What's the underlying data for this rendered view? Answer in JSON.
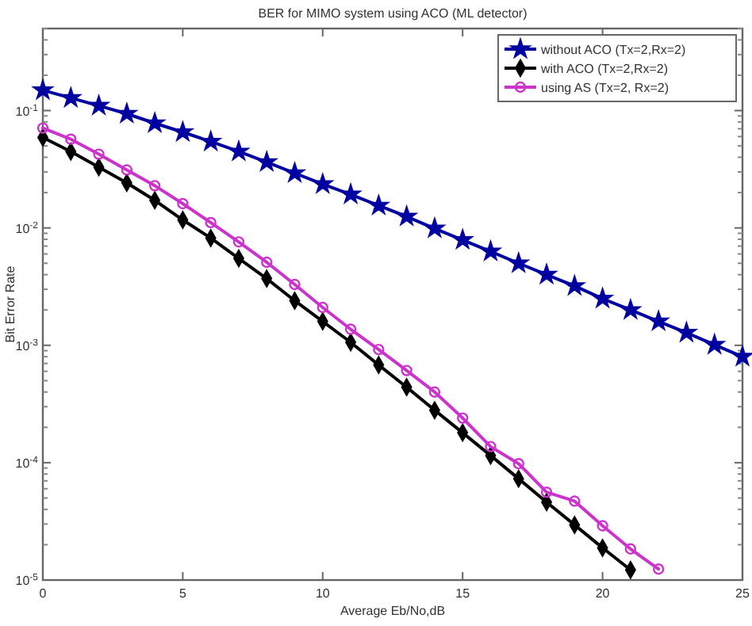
{
  "chart_data": {
    "type": "line",
    "title": "BER for MIMO system using ACO (ML detector)",
    "xlabel": "Average Eb/No,dB",
    "ylabel": "Bit Error Rate",
    "x": [
      0,
      1,
      2,
      3,
      4,
      5,
      6,
      7,
      8,
      9,
      10,
      11,
      12,
      13,
      14,
      15,
      16,
      17,
      18,
      19,
      20,
      21,
      22,
      23,
      24,
      25
    ],
    "log": "y",
    "xlim": [
      0,
      25
    ],
    "xticks": [
      0,
      5,
      10,
      15,
      20,
      25
    ],
    "ylim": [
      1e-05,
      0.5
    ],
    "yticks": [
      {
        "value": 1e-05,
        "label": "10$^{-5}$"
      },
      {
        "value": 0.0001,
        "label": "10$^{-4}$"
      },
      {
        "value": 0.001,
        "label": "10$^{-3}$"
      },
      {
        "value": 0.01,
        "label": "10$^{-2}$"
      },
      {
        "value": 0.1,
        "label": "10$^{-1}$"
      }
    ],
    "grid": false,
    "legend": "top right",
    "line_style": "solid",
    "series": [
      {
        "name": "without ACO (Tx=2,Rx=2)",
        "color": "#0000a0",
        "marker": "star",
        "values": [
          0.149,
          0.128,
          0.11,
          0.094,
          0.078,
          0.0655,
          0.0544,
          0.0448,
          0.0364,
          0.0293,
          0.0236,
          0.0193,
          0.0155,
          0.0125,
          0.0099,
          0.0079,
          0.0063,
          0.005,
          0.004,
          0.0032,
          0.0025,
          0.002,
          0.0016,
          0.00128,
          0.00101,
          0.0008
        ]
      },
      {
        "name": "with ACO (Tx=2,Rx=2)",
        "color": "#000000",
        "marker": "diamond",
        "values": [
          0.059,
          0.0448,
          0.0329,
          0.0242,
          0.0172,
          0.0117,
          0.0082,
          0.0055,
          0.0037,
          0.0024,
          0.0016,
          0.00106,
          0.00068,
          0.00044,
          0.00028,
          0.00018,
          0.000115,
          7.3e-05,
          4.6e-05,
          2.95e-05,
          1.88e-05,
          1.22e-05,
          null,
          null,
          null,
          null
        ]
      },
      {
        "name": "using AS (Tx=2, Rx=2)",
        "color": "#cc33cc",
        "marker": "circle",
        "values": [
          0.071,
          0.057,
          0.0425,
          0.0312,
          0.0229,
          0.0161,
          0.0111,
          0.0076,
          0.0051,
          0.0033,
          0.0021,
          0.00137,
          0.00092,
          0.00061,
          0.0004,
          0.00024,
          0.000137,
          9.8e-05,
          5.6e-05,
          4.7e-05,
          2.9e-05,
          1.84e-05,
          1.24e-05,
          null,
          null,
          null
        ]
      }
    ]
  }
}
